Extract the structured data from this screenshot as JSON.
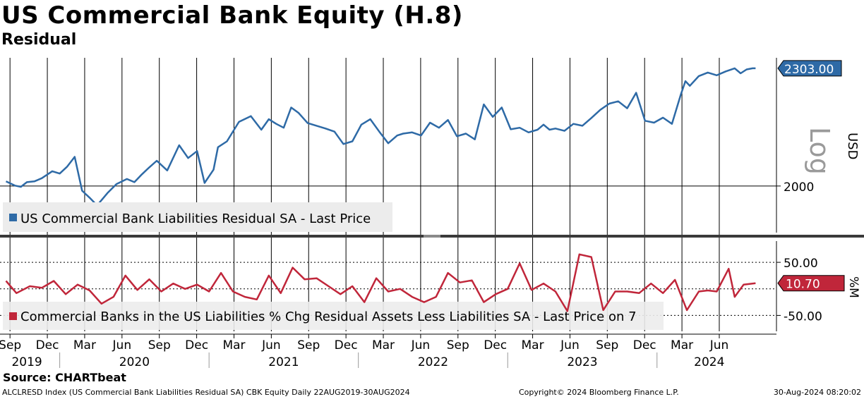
{
  "title": "US Commercial Bank Equity (H.8)",
  "subtitle": "Residual",
  "source": "Source: CHARTbeat",
  "footer": {
    "left": "ALCLRESD Index (US Commercial Bank Liabilities Residual SA) CBK Equity  Daily 22AUG2019-30AUG2024",
    "middle": "Copyright© 2024 Bloomberg Finance L.P.",
    "right": "30-Aug-2024 08:20:02"
  },
  "colors": {
    "top_series": "#2e6aa6",
    "bottom_series": "#c0263a",
    "last_value_top_bg": "#2e6aa6",
    "last_value_bottom_bg": "#c0263a"
  },
  "chart_data": [
    {
      "type": "line",
      "panel": "top",
      "ylabel": "USD",
      "scale_label": "Log",
      "y_ticks": [
        2000
      ],
      "ylim": [
        1880,
        2330
      ],
      "last_value_label": "2303.00",
      "legend": "US Commercial Bank Liabilities Residual SA - Last Price",
      "legend_placement": "bottom-left",
      "series": [
        {
          "name": "US Commercial Bank Liabilities Residual SA - Last Price",
          "x": [
            2019.64,
            2019.7,
            2019.74,
            2019.78,
            2019.83,
            2019.88,
            2019.95,
            2020.0,
            2020.05,
            2020.1,
            2020.15,
            2020.2,
            2020.25,
            2020.32,
            2020.38,
            2020.45,
            2020.5,
            2020.55,
            2020.6,
            2020.65,
            2020.72,
            2020.8,
            2020.86,
            2020.92,
            2020.97,
            2021.03,
            2021.06,
            2021.12,
            2021.2,
            2021.28,
            2021.35,
            2021.4,
            2021.45,
            2021.5,
            2021.55,
            2021.6,
            2021.66,
            2021.72,
            2021.78,
            2021.84,
            2021.9,
            2021.96,
            2022.02,
            2022.08,
            2022.14,
            2022.2,
            2022.26,
            2022.3,
            2022.36,
            2022.42,
            2022.48,
            2022.54,
            2022.6,
            2022.66,
            2022.72,
            2022.78,
            2022.84,
            2022.9,
            2022.96,
            2023.02,
            2023.08,
            2023.14,
            2023.2,
            2023.24,
            2023.28,
            2023.32,
            2023.38,
            2023.44,
            2023.5,
            2023.56,
            2023.62,
            2023.68,
            2023.74,
            2023.8,
            2023.86,
            2023.92,
            2023.98,
            2024.04,
            2024.1,
            2024.16,
            2024.19,
            2024.22,
            2024.28,
            2024.34,
            2024.4,
            2024.46,
            2024.52,
            2024.56,
            2024.6,
            2024.64,
            2024.66
          ],
          "values": [
            2012,
            2001,
            1998,
            2010,
            2012,
            2020,
            2038,
            2032,
            2050,
            2075,
            1988,
            1970,
            1950,
            1982,
            2005,
            2018,
            2010,
            2030,
            2048,
            2065,
            2040,
            2105,
            2072,
            2090,
            2008,
            2042,
            2100,
            2115,
            2165,
            2180,
            2145,
            2172,
            2160,
            2150,
            2202,
            2188,
            2162,
            2155,
            2148,
            2140,
            2108,
            2115,
            2158,
            2172,
            2140,
            2110,
            2130,
            2135,
            2138,
            2130,
            2163,
            2150,
            2170,
            2128,
            2135,
            2120,
            2210,
            2178,
            2202,
            2146,
            2150,
            2138,
            2145,
            2158,
            2145,
            2148,
            2142,
            2160,
            2155,
            2175,
            2196,
            2212,
            2218,
            2200,
            2240,
            2168,
            2163,
            2176,
            2160,
            2236,
            2270,
            2258,
            2283,
            2292,
            2285,
            2295,
            2303,
            2290,
            2300,
            2303,
            2303
          ]
        }
      ]
    },
    {
      "type": "line",
      "panel": "bottom",
      "ylabel": "%M",
      "y_ticks": [
        50.0,
        -50.0
      ],
      "tick_labels": [
        "50.00",
        "-50.00"
      ],
      "ylim": [
        -80,
        90
      ],
      "last_value_label": "10.70",
      "legend": "Commercial Banks in the US Liabilities % Chg Residual Assets Less Liabilities SA - Last Price on 7",
      "legend_placement": "bottom-left",
      "series": [
        {
          "name": "Commercial Banks in the US Liabilities % Chg Residual Assets Less Liabilities SA - Last Price on 7",
          "x": [
            2019.64,
            2019.71,
            2019.8,
            2019.88,
            2019.96,
            2020.04,
            2020.12,
            2020.2,
            2020.28,
            2020.36,
            2020.44,
            2020.52,
            2020.6,
            2020.68,
            2020.76,
            2020.84,
            2020.92,
            2021.0,
            2021.08,
            2021.16,
            2021.24,
            2021.32,
            2021.4,
            2021.48,
            2021.56,
            2021.64,
            2021.72,
            2021.8,
            2021.88,
            2021.96,
            2022.04,
            2022.12,
            2022.2,
            2022.28,
            2022.36,
            2022.44,
            2022.52,
            2022.6,
            2022.68,
            2022.76,
            2022.84,
            2022.92,
            2023.0,
            2023.08,
            2023.16,
            2023.24,
            2023.32,
            2023.4,
            2023.48,
            2023.56,
            2023.64,
            2023.72,
            2023.8,
            2023.88,
            2023.96,
            2024.04,
            2024.12,
            2024.2,
            2024.28,
            2024.34,
            2024.4,
            2024.48,
            2024.52,
            2024.58,
            2024.66
          ],
          "values": [
            15,
            -8,
            5,
            2,
            15,
            -10,
            8,
            -3,
            -28,
            -15,
            25,
            -2,
            18,
            -5,
            10,
            0,
            8,
            -5,
            30,
            -5,
            -15,
            -20,
            25,
            -8,
            40,
            18,
            20,
            5,
            -10,
            5,
            -25,
            20,
            -5,
            0,
            -15,
            -25,
            -15,
            30,
            12,
            16,
            -25,
            -10,
            0,
            48,
            -2,
            10,
            -5,
            -42,
            65,
            60,
            -40,
            -5,
            -5,
            -8,
            10,
            -8,
            17,
            -40,
            -5,
            -3,
            -5,
            38,
            -15,
            8,
            10.7
          ]
        }
      ]
    }
  ],
  "x_axis": {
    "month_ticks": [
      {
        "label": "Sep",
        "x": 2019.667
      },
      {
        "label": "Dec",
        "x": 2019.917
      },
      {
        "label": "Mar",
        "x": 2020.167
      },
      {
        "label": "Jun",
        "x": 2020.417
      },
      {
        "label": "Sep",
        "x": 2020.667
      },
      {
        "label": "Dec",
        "x": 2020.917
      },
      {
        "label": "Mar",
        "x": 2021.167
      },
      {
        "label": "Jun",
        "x": 2021.417
      },
      {
        "label": "Sep",
        "x": 2021.667
      },
      {
        "label": "Dec",
        "x": 2021.917
      },
      {
        "label": "Mar",
        "x": 2022.167
      },
      {
        "label": "Jun",
        "x": 2022.417
      },
      {
        "label": "Sep",
        "x": 2022.667
      },
      {
        "label": "Dec",
        "x": 2022.917
      },
      {
        "label": "Mar",
        "x": 2023.167
      },
      {
        "label": "Jun",
        "x": 2023.417
      },
      {
        "label": "Sep",
        "x": 2023.667
      },
      {
        "label": "Dec",
        "x": 2023.917
      },
      {
        "label": "Mar",
        "x": 2024.167
      },
      {
        "label": "Jun",
        "x": 2024.417
      }
    ],
    "years": [
      {
        "label": "2019",
        "x": 2019.78
      },
      {
        "label": "2020",
        "x": 2020.5
      },
      {
        "label": "2021",
        "x": 2021.5
      },
      {
        "label": "2022",
        "x": 2022.5
      },
      {
        "label": "2023",
        "x": 2023.5
      },
      {
        "label": "2024",
        "x": 2024.35
      }
    ],
    "year_boundaries": [
      2020.0,
      2021.0,
      2022.0,
      2023.0,
      2024.0
    ],
    "xlim": [
      2019.6,
      2024.8
    ]
  }
}
